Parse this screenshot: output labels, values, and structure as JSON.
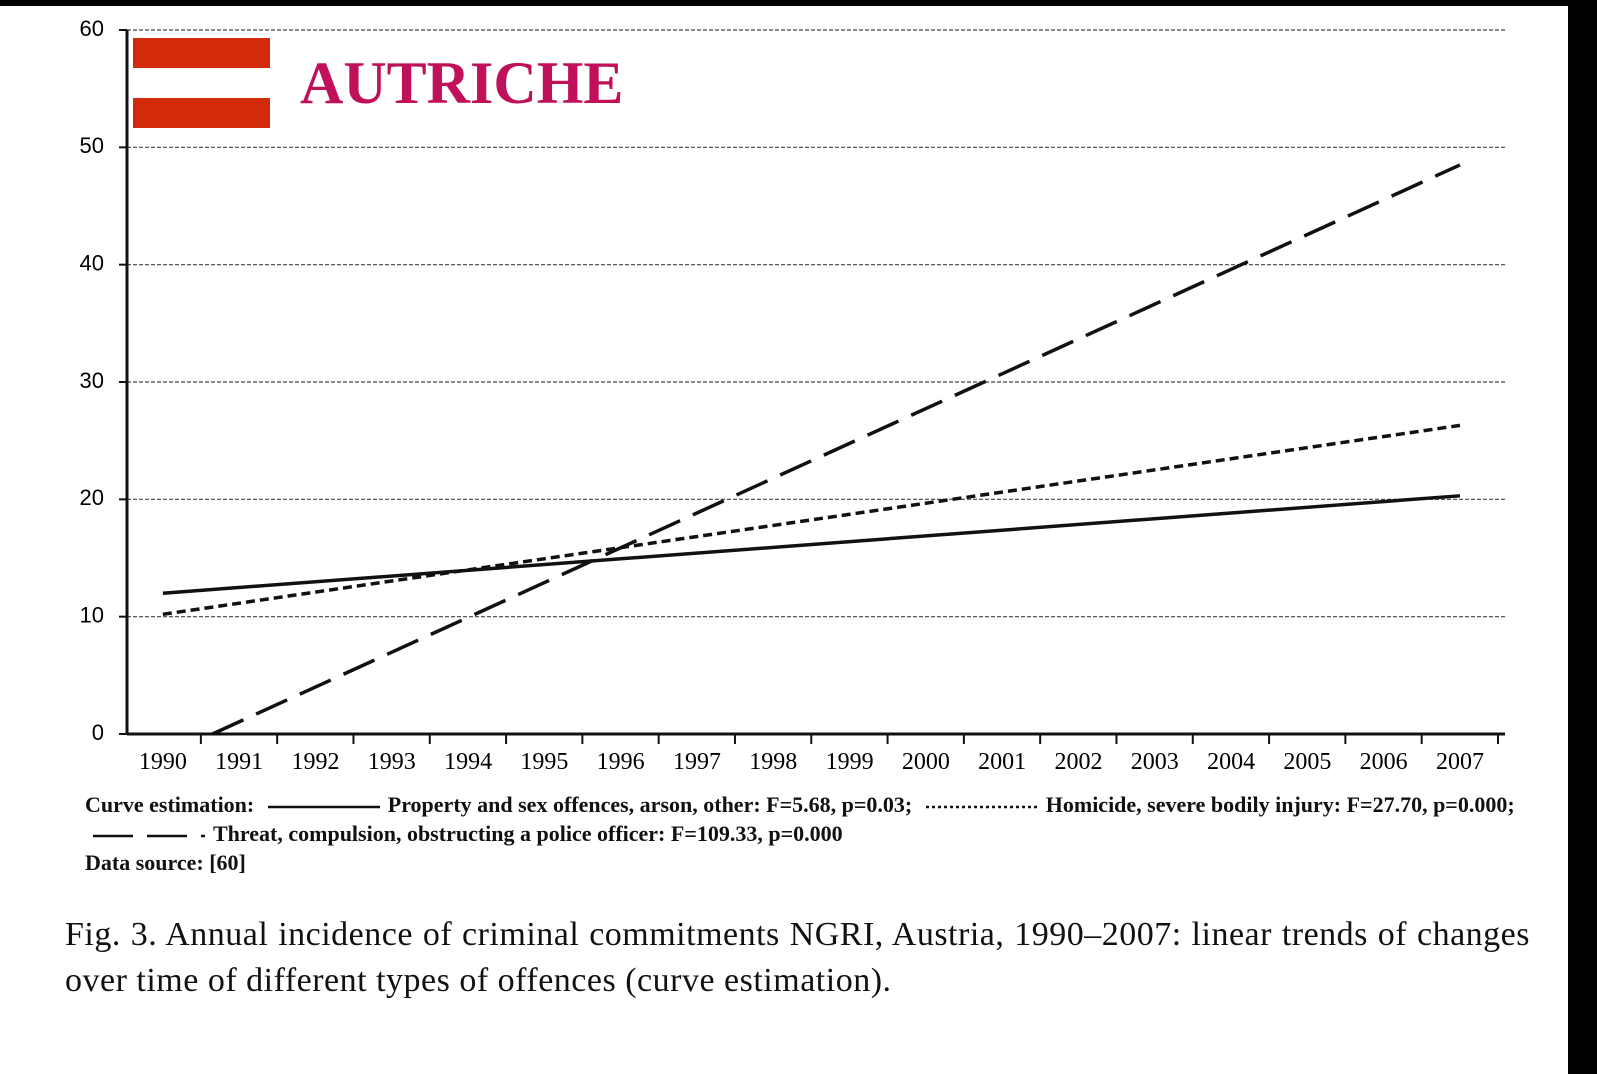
{
  "chart_data": {
    "type": "line",
    "title": "AUTRICHE",
    "xlim": [
      1989.53,
      2007.59
    ],
    "xticks": [
      1990,
      1991,
      1992,
      1993,
      1994,
      1995,
      1996,
      1997,
      1998,
      1999,
      2000,
      2001,
      2002,
      2003,
      2004,
      2005,
      2006,
      2007
    ],
    "ylim": [
      0,
      60
    ],
    "yticks": [
      0,
      10,
      20,
      30,
      40,
      50,
      60
    ],
    "grid": true,
    "legend_intro": "Curve estimation:",
    "source": "Data source: [60]",
    "caption": "Fig. 3. Annual incidence of criminal commitments NGRI, Austria, 1990–2007: linear trends of changes over time of different types of offences (curve estimation).",
    "series": [
      {
        "name": "Property and sex offences, arson, other: F=5.68, p=0.03;",
        "color": "#111111",
        "style": "solid",
        "x": [
          1990,
          2007
        ],
        "values": [
          12,
          20.3
        ]
      },
      {
        "name": "Homicide, severe bodily injury: F=27.70, p=0.000;",
        "color": "#111111",
        "style": "dotted",
        "x": [
          1990,
          2007
        ],
        "values": [
          10.2,
          26.3
        ]
      },
      {
        "name": "Threat, compulsion, obstructing a police officer: F=109.33, p=0.000",
        "color": "#111111",
        "style": "dashed",
        "x": [
          1990.65,
          2007
        ],
        "values": [
          0,
          48.5
        ]
      }
    ]
  }
}
